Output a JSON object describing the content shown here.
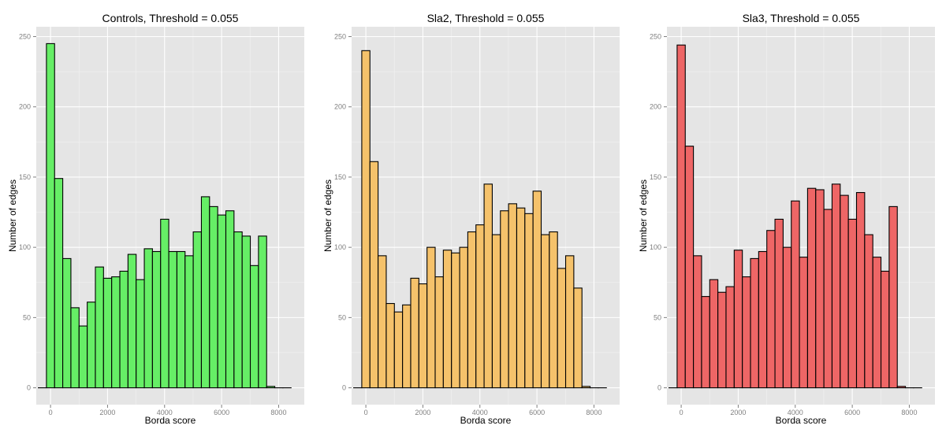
{
  "chart_data": [
    {
      "type": "bar",
      "title": "Controls, Threshold =  0.055",
      "xlabel": "Borda score",
      "ylabel": "Number of edges",
      "fill": "#66ee66",
      "xlim": [
        -500,
        8900
      ],
      "ylim": [
        -12,
        257
      ],
      "xticks": [
        0,
        2000,
        4000,
        6000,
        8000
      ],
      "yticks": [
        0,
        50,
        100,
        150,
        200,
        250
      ],
      "bin_width": 286,
      "bin_centers": [
        -286,
        0,
        286,
        572,
        858,
        1144,
        1430,
        1716,
        2002,
        2288,
        2574,
        2860,
        3146,
        3432,
        3718,
        4004,
        4290,
        4576,
        4862,
        5148,
        5434,
        5720,
        6006,
        6292,
        6578,
        6864,
        7150,
        7436,
        7722,
        8008,
        8294
      ],
      "values": [
        0,
        245,
        149,
        92,
        57,
        44,
        61,
        86,
        78,
        79,
        83,
        95,
        77,
        99,
        97,
        120,
        97,
        97,
        94,
        111,
        136,
        129,
        123,
        126,
        111,
        108,
        87,
        108,
        1,
        0,
        0
      ]
    },
    {
      "type": "bar",
      "title": "Sla2, Threshold =  0.055",
      "xlabel": "Borda score",
      "ylabel": "Number of edges",
      "fill": "#f5c26b",
      "xlim": [
        -500,
        8900
      ],
      "ylim": [
        -12,
        257
      ],
      "xticks": [
        0,
        2000,
        4000,
        6000,
        8000
      ],
      "yticks": [
        0,
        50,
        100,
        150,
        200,
        250
      ],
      "bin_width": 286,
      "bin_centers": [
        -286,
        0,
        286,
        572,
        858,
        1144,
        1430,
        1716,
        2002,
        2288,
        2574,
        2860,
        3146,
        3432,
        3718,
        4004,
        4290,
        4576,
        4862,
        5148,
        5434,
        5720,
        6006,
        6292,
        6578,
        6864,
        7150,
        7436,
        7722,
        8008,
        8294
      ],
      "values": [
        0,
        240,
        161,
        94,
        60,
        54,
        59,
        78,
        74,
        100,
        79,
        98,
        96,
        100,
        111,
        116,
        145,
        109,
        126,
        131,
        128,
        124,
        140,
        109,
        111,
        85,
        94,
        71,
        1,
        0,
        0
      ]
    },
    {
      "type": "bar",
      "title": "Sla3, Threshold =  0.055",
      "xlabel": "Borda score",
      "ylabel": "Number of edges",
      "fill": "#ee6666",
      "xlim": [
        -500,
        8900
      ],
      "ylim": [
        -12,
        257
      ],
      "xticks": [
        0,
        2000,
        4000,
        6000,
        8000
      ],
      "yticks": [
        0,
        50,
        100,
        150,
        200,
        250
      ],
      "bin_width": 286,
      "bin_centers": [
        -286,
        0,
        286,
        572,
        858,
        1144,
        1430,
        1716,
        2002,
        2288,
        2574,
        2860,
        3146,
        3432,
        3718,
        4004,
        4290,
        4576,
        4862,
        5148,
        5434,
        5720,
        6006,
        6292,
        6578,
        6864,
        7150,
        7436,
        7722,
        8008,
        8294
      ],
      "values": [
        0,
        244,
        172,
        94,
        65,
        77,
        68,
        72,
        98,
        79,
        92,
        97,
        112,
        120,
        100,
        133,
        93,
        142,
        141,
        127,
        145,
        137,
        120,
        139,
        109,
        93,
        83,
        129,
        1,
        0,
        0
      ]
    }
  ]
}
